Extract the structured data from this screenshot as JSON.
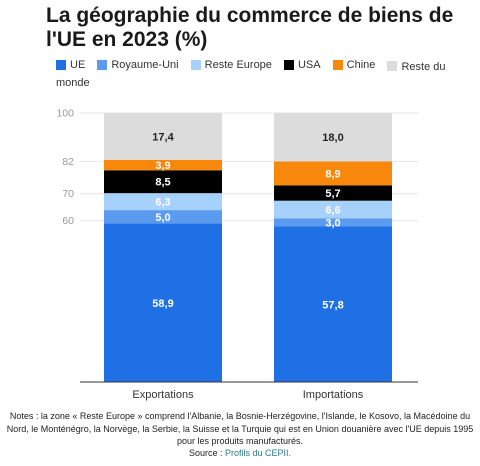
{
  "title": "La géographie du commerce de biens de l'UE en 2023 (%)",
  "legend": [
    {
      "label": "UE",
      "color": "#1f6fe5"
    },
    {
      "label": "Royaume-Uni",
      "color": "#5b9bef"
    },
    {
      "label": "Reste Europe",
      "color": "#a6d1fb"
    },
    {
      "label": "USA",
      "color": "#000000"
    },
    {
      "label": "Chine",
      "color": "#f7880b"
    },
    {
      "label": "Reste du monde",
      "color": "#dcdcdc"
    }
  ],
  "chart_data": {
    "type": "bar",
    "stacked": true,
    "categories": [
      "Exportations",
      "Importations"
    ],
    "series": [
      {
        "name": "UE",
        "color": "#1f6fe5",
        "values": [
          58.9,
          57.8
        ]
      },
      {
        "name": "Royaume-Uni",
        "color": "#5b9bef",
        "values": [
          5.0,
          3.0
        ]
      },
      {
        "name": "Reste Europe",
        "color": "#a6d1fb",
        "values": [
          6.3,
          6.6
        ]
      },
      {
        "name": "USA",
        "color": "#000000",
        "values": [
          8.5,
          5.7
        ]
      },
      {
        "name": "Chine",
        "color": "#f7880b",
        "values": [
          3.9,
          8.9
        ]
      },
      {
        "name": "Reste du monde",
        "color": "#dcdcdc",
        "values": [
          17.4,
          18.0
        ]
      }
    ],
    "value_labels": [
      [
        "58,9",
        "57,8"
      ],
      [
        "5,0",
        "3,0"
      ],
      [
        "6,3",
        "6,6"
      ],
      [
        "8,5",
        "5,7"
      ],
      [
        "3,9",
        "8,9"
      ],
      [
        "17,4",
        "18,0"
      ]
    ],
    "yticks": [
      "100",
      "82",
      "70",
      "60"
    ],
    "ytick_values": [
      100,
      82,
      70,
      60
    ],
    "ylim": [
      0,
      100
    ],
    "xlabel": "",
    "ylabel": ""
  },
  "notes": "Notes : la zone « Reste Europe » comprend l'Albanie, la Bosnie-Herzégovine, l'Islande, le Kosovo, la Macédoine du Nord, le Monténégro, la Norvège, la Serbie, la Suisse et la Turquie qui est en Union douanière avec l'UE depuis 1995 pour les produits manufacturés.",
  "source": {
    "prefix": "Source : ",
    "link": "Profils du CEPII."
  }
}
